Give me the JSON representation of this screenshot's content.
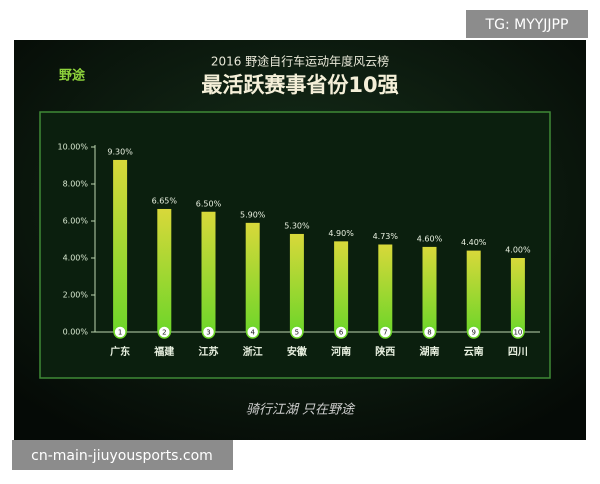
{
  "watermark": "TG: MYYJJPP",
  "footer_source": "cn-main-jiuyousports.com",
  "logo": "野途",
  "signature": "骑行江湖 只在野途",
  "chart_data": {
    "type": "bar",
    "subtitle": "2016 野途自行车运动年度风云榜",
    "title": "最活跃赛事省份10强",
    "categories": [
      "广东",
      "福建",
      "江苏",
      "浙江",
      "安徽",
      "河南",
      "陕西",
      "湖南",
      "云南",
      "四川"
    ],
    "ranks": [
      1,
      2,
      3,
      4,
      5,
      6,
      7,
      8,
      9,
      10
    ],
    "values": [
      9.3,
      6.65,
      6.5,
      5.9,
      5.3,
      4.9,
      4.73,
      4.6,
      4.4,
      4.0
    ],
    "value_labels": [
      "9.30%",
      "6.65%",
      "6.50%",
      "5.90%",
      "5.30%",
      "4.90%",
      "4.73%",
      "4.60%",
      "4.40%",
      "4.00%"
    ],
    "color": "#6fd62a",
    "ylim": [
      0,
      10
    ],
    "yticks": [
      {
        "value": 0,
        "label": "0.00%"
      },
      {
        "value": 2,
        "label": "2.00%"
      },
      {
        "value": 4,
        "label": "4.00%"
      },
      {
        "value": 6,
        "label": "6.00%"
      },
      {
        "value": 8,
        "label": "8.00%"
      },
      {
        "value": 10,
        "label": "10.00%"
      }
    ],
    "grid": false
  }
}
